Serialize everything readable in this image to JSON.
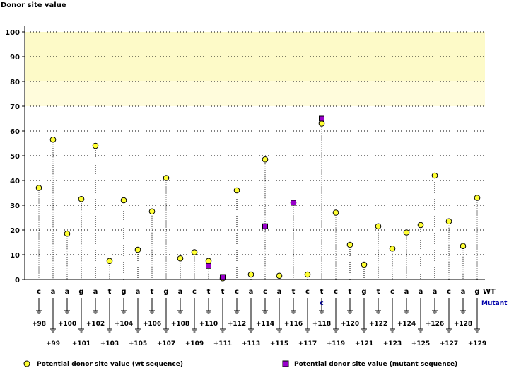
{
  "chart_data": {
    "type": "scatter",
    "ylabel": "Donor site value",
    "ylim": [
      0,
      100
    ],
    "yticks": [
      0,
      10,
      20,
      30,
      40,
      50,
      60,
      70,
      80,
      90,
      100
    ],
    "highlight_bands": [
      {
        "from": 80,
        "to": 100,
        "color": "#fdfac8"
      },
      {
        "from": 70,
        "to": 80,
        "color": "#fffcdc"
      }
    ],
    "positions": [
      "+98",
      "+99",
      "+100",
      "+101",
      "+102",
      "+103",
      "+104",
      "+105",
      "+106",
      "+107",
      "+108",
      "+109",
      "+110",
      "+111",
      "+112",
      "+113",
      "+114",
      "+115",
      "+116",
      "+117",
      "+118",
      "+119",
      "+120",
      "+121",
      "+122",
      "+123",
      "+124",
      "+125",
      "+126",
      "+127",
      "+128",
      "+129"
    ],
    "wt_sequence": [
      "c",
      "a",
      "a",
      "g",
      "a",
      "t",
      "g",
      "a",
      "t",
      "g",
      "a",
      "c",
      "t",
      "t",
      "c",
      "a",
      "c",
      "a",
      "t",
      "c",
      "t",
      "c",
      "t",
      "g",
      "t",
      "c",
      "a",
      "a",
      "a",
      "c",
      "a",
      "g"
    ],
    "mutant_sequence": [
      "",
      "",
      "",
      "",
      "",
      "",
      "",
      "",
      "",
      "",
      "",
      "",
      "",
      "",
      "",
      "",
      "",
      "",
      "",
      "",
      "c",
      "",
      "",
      "",
      "",
      "",
      "",
      "",
      "",
      "",
      "",
      ""
    ],
    "row_labels": {
      "wt": "WT",
      "mutant": "Mutant"
    },
    "series": [
      {
        "name": "Potential donor site value (wt sequence)",
        "marker": "circle",
        "color": "#ffff33",
        "values": [
          37,
          56.5,
          18.5,
          32.5,
          54,
          7.5,
          32,
          12,
          27.5,
          41,
          8.5,
          11,
          7.5,
          0.5,
          36,
          2,
          48.5,
          1.5,
          31,
          2,
          63,
          27,
          14,
          6,
          21.5,
          12.5,
          19,
          22,
          42,
          23.5,
          13.5,
          33
        ]
      },
      {
        "name": "Potential donor site value (mutant sequence)",
        "marker": "square",
        "color": "#9900cc",
        "values": [
          null,
          null,
          null,
          null,
          null,
          null,
          null,
          null,
          null,
          null,
          null,
          null,
          5.5,
          1,
          null,
          null,
          21.5,
          null,
          31,
          null,
          65,
          null,
          null,
          null,
          null,
          null,
          null,
          null,
          null,
          null,
          null,
          null
        ]
      }
    ],
    "legend": [
      {
        "label": "Potential donor site value (wt sequence)",
        "marker": "circle",
        "color": "#ffff33"
      },
      {
        "label": "Potential donor site value (mutant sequence)",
        "marker": "square",
        "color": "#9900cc"
      }
    ],
    "colors": {
      "mutant_label": "#0000aa",
      "grid": "#000000",
      "axis": "#000000"
    }
  }
}
